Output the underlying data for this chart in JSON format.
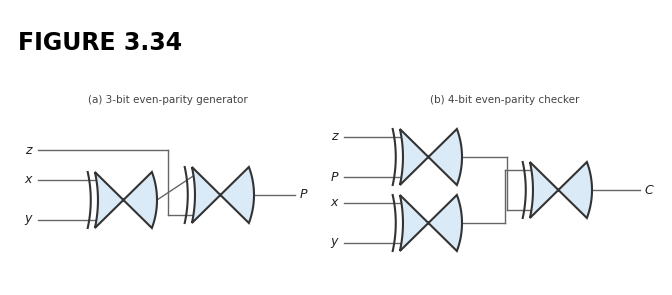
{
  "bg_color": "#ffffff",
  "gate_fill": "#daeaf7",
  "gate_edge": "#333333",
  "line_color": "#666666",
  "text_color": "#222222",
  "caption_a": "(a) 3-bit even-parity generator",
  "caption_b": "(b) 4-bit even-parity checker",
  "figure_label": "FIGURE 3.34",
  "fig_width": 6.72,
  "fig_height": 2.95
}
